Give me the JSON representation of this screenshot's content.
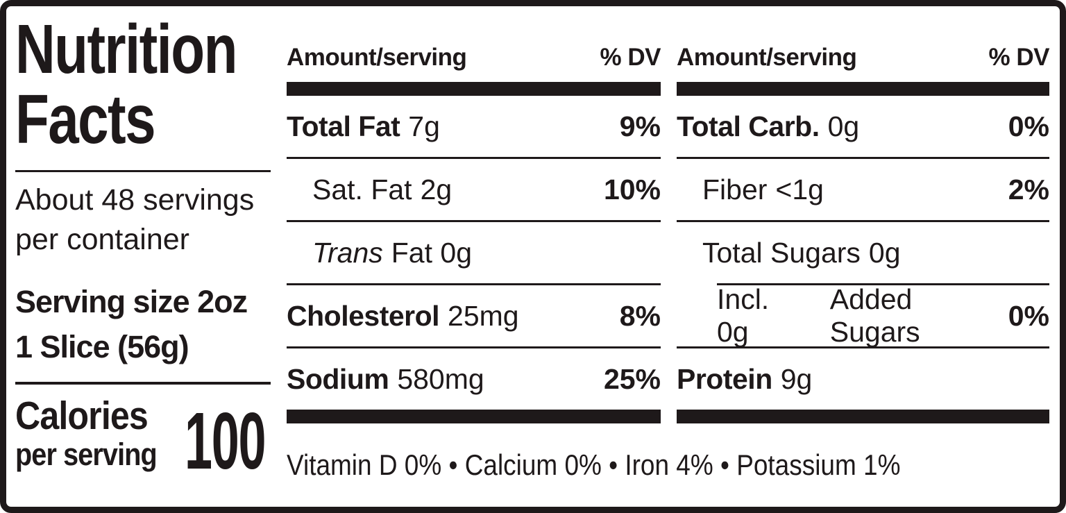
{
  "label": {
    "title_line1": "Nutrition",
    "title_line2": "Facts",
    "servings_line1": "About 48 servings",
    "servings_line2": "per container",
    "serving_size_line1": "Serving size 2oz",
    "serving_size_line2": "1 Slice (56g)",
    "calories_label": "Calories",
    "calories_sublabel": "per serving",
    "calories_value": "100"
  },
  "columns": [
    {
      "header_amount": "Amount/serving",
      "header_dv": "% DV",
      "rows": [
        {
          "name": "Total Fat",
          "value": "7g",
          "dv": "9%"
        },
        {
          "name": "Sat. Fat",
          "value": "2g",
          "dv": "10%"
        },
        {
          "name": "Trans",
          "value": "Fat 0g",
          "dv": ""
        },
        {
          "name": "Cholesterol",
          "value": "25mg",
          "dv": "8%"
        },
        {
          "name": "Sodium",
          "value": "580mg",
          "dv": "25%"
        }
      ]
    },
    {
      "header_amount": "Amount/serving",
      "header_dv": "% DV",
      "rows": [
        {
          "name": "Total Carb.",
          "value": "0g",
          "dv": "0%"
        },
        {
          "name": "Fiber",
          "value": "<1g",
          "dv": "2%"
        },
        {
          "name": "Total Sugars",
          "value": "0g",
          "dv": ""
        },
        {
          "name": "Incl. 0g",
          "value": "Added Sugars",
          "dv": "0%"
        },
        {
          "name": "Protein",
          "value": "9g",
          "dv": ""
        }
      ]
    }
  ],
  "footer": {
    "vitamins": "Vitamin D 0% • Calcium 0% • Iron 4% • Potassium 1%"
  },
  "colors": {
    "ink": "#1e191a",
    "background": "#ffffff"
  }
}
